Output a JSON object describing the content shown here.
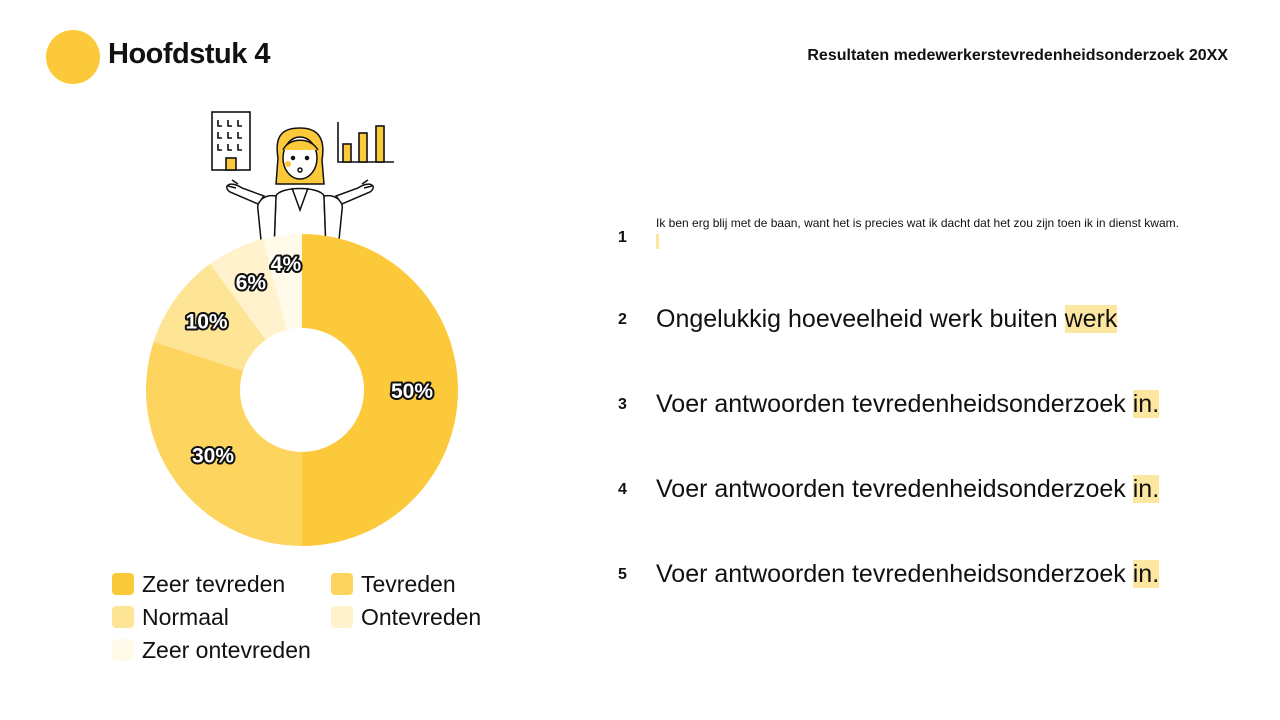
{
  "header": {
    "chapter": "Hoofdstuk 4",
    "subtitle": "Resultaten medewerkerstevredenheidsonderzoek 20XX",
    "accent": "#fcc93a"
  },
  "illustration": {
    "icons": [
      "office-building-icon",
      "bar-chart-icon",
      "shrugging-woman-icon"
    ]
  },
  "chart_data": {
    "type": "pie",
    "donut": true,
    "categories": [
      "Zeer tevreden",
      "Tevreden",
      "Normaal",
      "Ontevreden",
      "Zeer ontevreden"
    ],
    "values": [
      50,
      30,
      10,
      6,
      4
    ],
    "data_labels": [
      "50%",
      "30%",
      "10%",
      "6%",
      "4%"
    ],
    "colors": [
      "#fcc93a",
      "#fdd55e",
      "#fee495",
      "#fff2cc",
      "#fffaea"
    ],
    "legend_position": "bottom"
  },
  "answers": [
    {
      "num": "1",
      "text": "Ik ben erg blij met de baan, want het is precies wat ik dacht dat het zou zijn toen ik in dienst kwam.",
      "highlight": ""
    },
    {
      "num": "2",
      "text": "Ongelukkig hoeveelheid werk buiten ",
      "highlight": "werk"
    },
    {
      "num": "3",
      "text": "Voer antwoorden tevredenheidsonderzoek ",
      "highlight": "in."
    },
    {
      "num": "4",
      "text": "Voer antwoorden tevredenheidsonderzoek ",
      "highlight": "in."
    },
    {
      "num": "5",
      "text": "Voer antwoorden tevredenheidsonderzoek ",
      "highlight": "in."
    }
  ]
}
